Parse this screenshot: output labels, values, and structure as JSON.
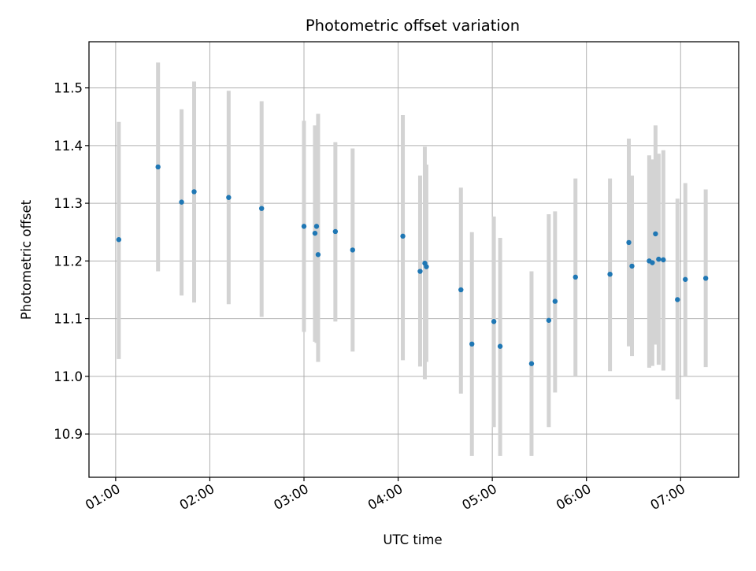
{
  "chart_data": {
    "type": "scatter",
    "title": "Photometric offset variation",
    "xlabel": "UTC time",
    "ylabel": "Photometric offset",
    "x_unit": "UTC hh:mm",
    "xlim": [
      "00:43",
      "07:37"
    ],
    "ylim": [
      10.825,
      11.58
    ],
    "x_ticks": [
      "01:00",
      "02:00",
      "03:00",
      "04:00",
      "05:00",
      "06:00",
      "07:00"
    ],
    "y_ticks": [
      "10.9",
      "11.0",
      "11.1",
      "11.2",
      "11.3",
      "11.4",
      "11.5"
    ],
    "grid": true,
    "legend": "none",
    "marker_color": "#1f77b4",
    "errorbar_color": "#d3d3d3",
    "series": [
      {
        "x": [
          "01:02",
          "01:27",
          "01:42",
          "01:50",
          "02:12",
          "02:33",
          "03:00",
          "03:07",
          "03:08",
          "03:09",
          "03:20",
          "03:31",
          "04:03",
          "04:14",
          "04:17",
          "04:18",
          "04:40",
          "04:47",
          "05:01",
          "05:05",
          "05:25",
          "05:36",
          "05:40",
          "05:53",
          "06:15",
          "06:27",
          "06:29",
          "06:40",
          "06:42",
          "06:44",
          "06:46",
          "06:49",
          "06:58",
          "07:03",
          "07:16"
        ],
        "y": [
          11.237,
          11.363,
          11.302,
          11.32,
          11.31,
          11.291,
          11.26,
          11.248,
          11.26,
          11.211,
          11.251,
          11.219,
          11.243,
          11.182,
          11.196,
          11.19,
          11.15,
          11.056,
          11.095,
          11.052,
          11.022,
          11.097,
          11.13,
          11.172,
          11.177,
          11.232,
          11.191,
          11.2,
          11.197,
          11.247,
          11.203,
          11.202,
          11.133,
          11.168,
          11.17
        ],
        "y_err_low": [
          11.03,
          11.182,
          11.14,
          11.128,
          11.125,
          11.103,
          11.077,
          11.06,
          11.058,
          11.025,
          11.095,
          11.043,
          11.028,
          11.017,
          10.995,
          11.025,
          10.97,
          10.862,
          10.912,
          10.862,
          10.862,
          10.912,
          10.972,
          11.0,
          11.009,
          11.052,
          11.035,
          11.015,
          11.018,
          11.055,
          11.02,
          11.01,
          10.96,
          11.0,
          11.016
        ],
        "y_err_high": [
          11.441,
          11.544,
          11.463,
          11.511,
          11.495,
          11.477,
          11.443,
          11.435,
          11.42,
          11.455,
          11.406,
          11.395,
          11.453,
          11.348,
          11.398,
          11.367,
          11.327,
          11.25,
          11.277,
          11.24,
          11.182,
          11.281,
          11.286,
          11.343,
          11.343,
          11.412,
          11.348,
          11.383,
          11.376,
          11.435,
          11.386,
          11.392,
          11.308,
          11.335,
          11.324
        ]
      }
    ]
  }
}
